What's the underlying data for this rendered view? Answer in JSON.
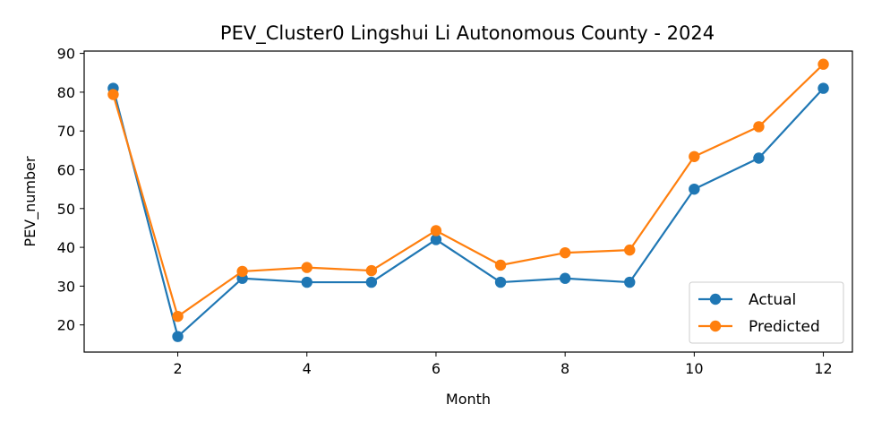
{
  "chart_data": {
    "type": "line",
    "title": "PEV_Cluster0 Lingshui Li Autonomous County - 2024",
    "xlabel": "Month",
    "ylabel": "PEV_number",
    "x": [
      1,
      2,
      3,
      4,
      5,
      6,
      7,
      8,
      9,
      10,
      11,
      12
    ],
    "xlim": [
      0.55,
      12.45
    ],
    "ylim": [
      13.0,
      90.6
    ],
    "xticks": [
      2,
      4,
      6,
      8,
      10,
      12
    ],
    "yticks": [
      20,
      30,
      40,
      50,
      60,
      70,
      80,
      90
    ],
    "grid": false,
    "legend_position": "lower-right",
    "series": [
      {
        "name": "Actual",
        "color": "#1f77b4",
        "values": [
          81,
          17,
          32,
          31,
          31,
          42,
          31,
          32,
          31,
          55,
          63,
          81
        ]
      },
      {
        "name": "Predicted",
        "color": "#ff7f0e",
        "values": [
          79.4,
          22.2,
          33.8,
          34.8,
          34.0,
          44.3,
          35.4,
          38.6,
          39.3,
          63.4,
          71.1,
          87.2
        ]
      }
    ]
  }
}
